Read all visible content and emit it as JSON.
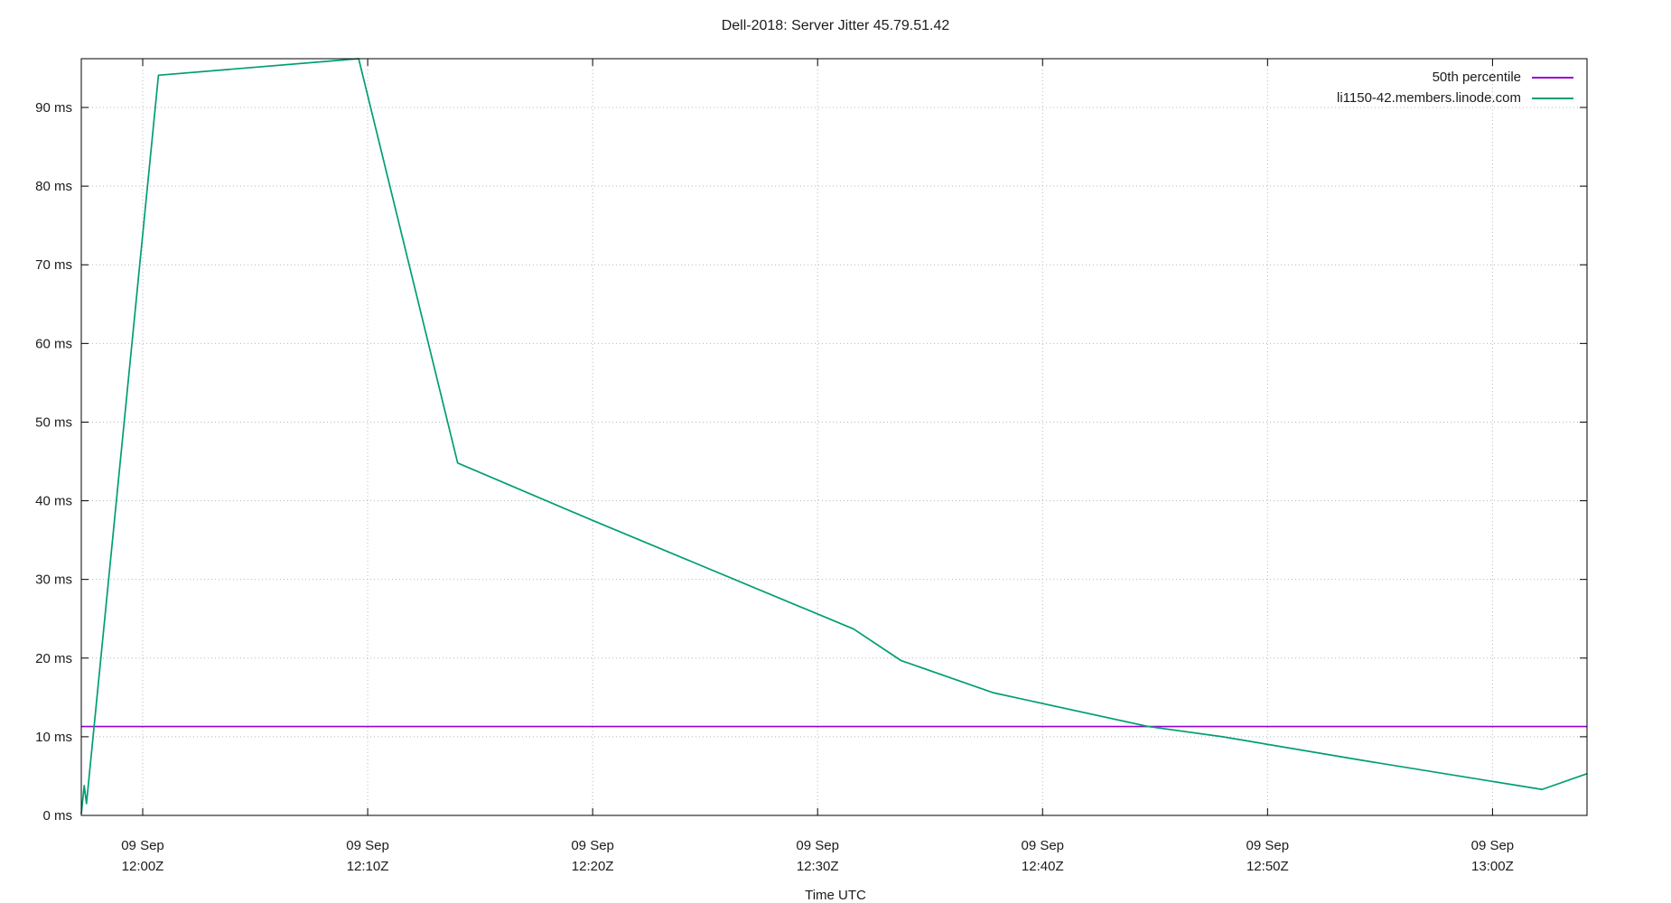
{
  "chart_data": {
    "type": "line",
    "title": "Dell-2018: Server Jitter 45.79.51.42",
    "xlabel": "Time UTC",
    "ylabel": "",
    "x_unit": "minutes after 09 Sep 12:00Z (UTC)",
    "y_unit": "ms",
    "xlim": [
      -2.73,
      64.2
    ],
    "ylim": [
      0,
      96.2
    ],
    "grid": true,
    "grid_style": "dotted",
    "legend_position": "inside top-right",
    "background_color": "#ffffff",
    "border_color": "#000000",
    "text_color": "#1c1c1c",
    "x_ticks": [
      {
        "pos": 0,
        "date": "09 Sep",
        "time": "12:00Z"
      },
      {
        "pos": 10,
        "date": "09 Sep",
        "time": "12:10Z"
      },
      {
        "pos": 20,
        "date": "09 Sep",
        "time": "12:20Z"
      },
      {
        "pos": 30,
        "date": "09 Sep",
        "time": "12:30Z"
      },
      {
        "pos": 40,
        "date": "09 Sep",
        "time": "12:40Z"
      },
      {
        "pos": 50,
        "date": "09 Sep",
        "time": "12:50Z"
      },
      {
        "pos": 60,
        "date": "09 Sep",
        "time": "13:00Z"
      }
    ],
    "y_ticks": [
      {
        "pos": 0,
        "label": "0 ms"
      },
      {
        "pos": 10,
        "label": "10 ms"
      },
      {
        "pos": 20,
        "label": "20 ms"
      },
      {
        "pos": 30,
        "label": "30 ms"
      },
      {
        "pos": 40,
        "label": "40 ms"
      },
      {
        "pos": 50,
        "label": "50 ms"
      },
      {
        "pos": 60,
        "label": "60 ms"
      },
      {
        "pos": 70,
        "label": "70 ms"
      },
      {
        "pos": 80,
        "label": "80 ms"
      },
      {
        "pos": 90,
        "label": "90 ms"
      }
    ],
    "series": [
      {
        "name": "50th percentile",
        "color": "#9400d3",
        "points": [
          [
            -2.73,
            11.3
          ],
          [
            64.2,
            11.3
          ]
        ]
      },
      {
        "name": "li1150-42.members.linode.com",
        "color": "#009e73",
        "points": [
          [
            -2.73,
            0.2
          ],
          [
            -2.6,
            3.8
          ],
          [
            -2.5,
            1.5
          ],
          [
            0.7,
            94.1
          ],
          [
            9.6,
            96.2
          ],
          [
            14.0,
            44.8
          ],
          [
            20.0,
            37.5
          ],
          [
            31.6,
            23.7
          ],
          [
            33.7,
            19.7
          ],
          [
            37.8,
            15.6
          ],
          [
            44.7,
            11.3
          ],
          [
            48.0,
            10.0
          ],
          [
            54.0,
            7.1
          ],
          [
            62.2,
            3.3
          ],
          [
            64.2,
            5.3
          ]
        ]
      }
    ]
  }
}
